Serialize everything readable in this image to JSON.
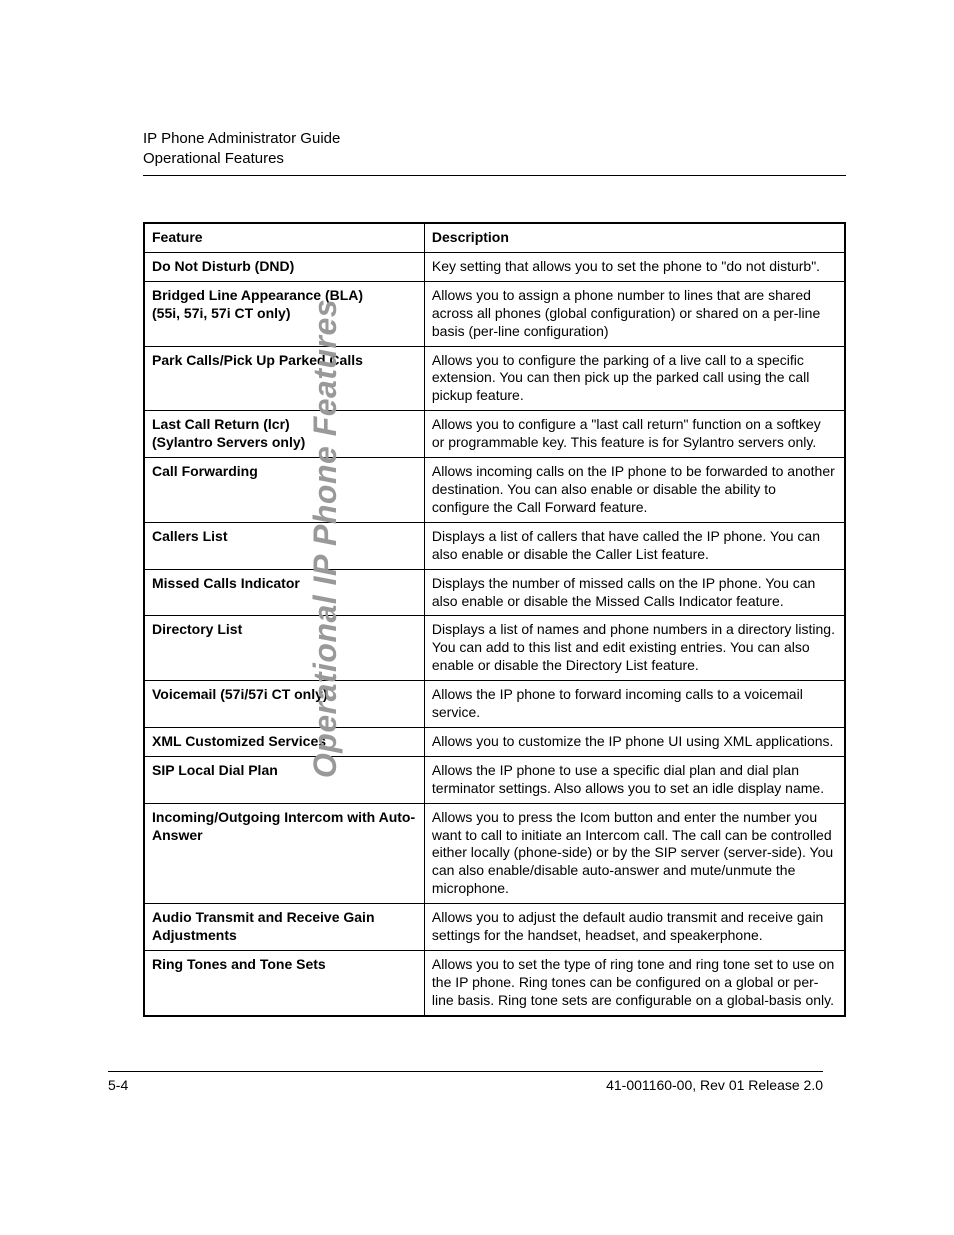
{
  "header": {
    "line1": "IP Phone Administrator Guide",
    "line2": "Operational Features"
  },
  "side_label": "Operational IP Phone Features",
  "table": {
    "headers": {
      "feature": "Feature",
      "description": "Description"
    },
    "rows": [
      {
        "feature": "Do Not Disturb (DND)",
        "description": " Key setting that allows you to set the phone to \"do not disturb\"."
      },
      {
        "feature": "Bridged Line Appearance (BLA)\n(55i, 57i, 57i CT only)",
        "description": "Allows you to assign a phone number to lines that are shared across all phones (global configuration) or shared on a per-line basis (per-line configuration)"
      },
      {
        "feature": "Park Calls/Pick Up Parked Calls",
        "description": "Allows you to configure the parking of a live call to a specific extension. You can then pick up the parked call using the call pickup feature."
      },
      {
        "feature": "Last Call Return (lcr)\n(Sylantro Servers only)",
        "description": "Allows you to configure a \"last call return\" function on a softkey or programmable key. This feature is for Sylantro servers only."
      },
      {
        "feature": "Call Forwarding",
        "description": "Allows incoming calls on the IP phone to be forwarded to another destination. You can also enable or disable the ability to configure the Call Forward feature."
      },
      {
        "feature": "Callers List",
        "description": "Displays a list of callers that have called the IP phone. You can also enable or disable the Caller List feature."
      },
      {
        "feature": "Missed Calls Indicator",
        "description": "Displays the number of missed calls on the IP phone. You can also enable or disable the Missed Calls Indicator feature."
      },
      {
        "feature": "Directory List",
        "description": "Displays a list of names and phone numbers in a directory listing. You can add to this list and edit existing entries. You can also enable or disable the Directory List feature."
      },
      {
        "feature": "Voicemail (57i/57i CT only)",
        "description": "Allows the IP phone to forward incoming calls to a voicemail service."
      },
      {
        "feature": "XML Customized Services",
        "description": "Allows you to customize the IP phone UI using XML applications."
      },
      {
        "feature": "SIP Local Dial Plan",
        "description": "Allows the IP phone to use a specific dial plan and dial plan terminator settings. Also allows you to set an idle display name."
      },
      {
        "feature": "Incoming/Outgoing Intercom with Auto-Answer",
        "description": "Allows you to press the Icom button and enter the number you want to call to initiate an Intercom call. The call can be controlled either locally (phone-side) or by the SIP server (server-side). You can also enable/disable auto-answer and mute/unmute the microphone."
      },
      {
        "feature": "Audio Transmit and Receive Gain Adjustments",
        "description": " Allows you to adjust the default audio transmit and receive gain settings for the handset, headset, and speakerphone."
      },
      {
        "feature": "Ring Tones and Tone Sets",
        "description": "Allows you to set the type of ring tone and ring tone set to use on the IP phone. Ring tones can be configured on a global or per-line basis. Ring tone sets are configurable on a global-basis only."
      }
    ]
  },
  "footer": {
    "page": "5-4",
    "doc_ref": "41-001160-00, Rev 01 Release 2.0"
  }
}
